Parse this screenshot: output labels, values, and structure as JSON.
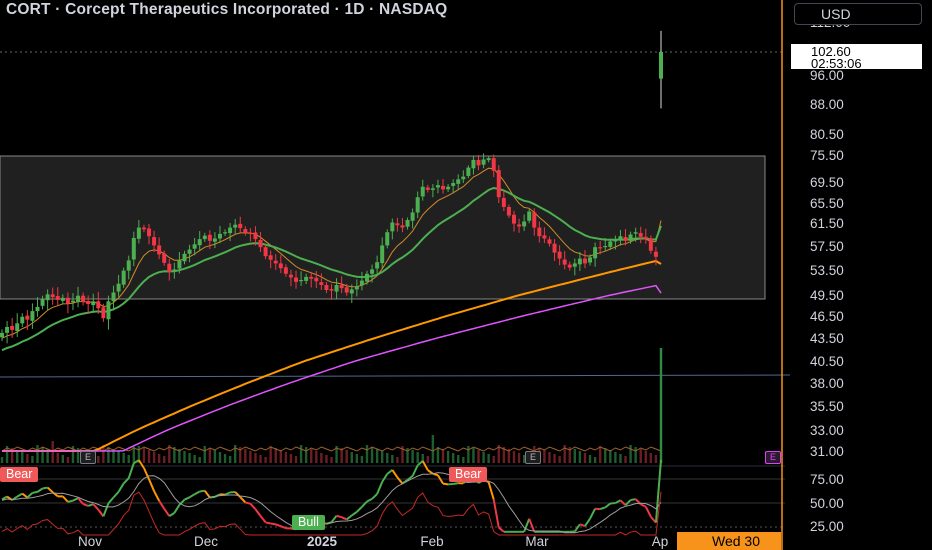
{
  "header": {
    "title": "CORT · Corcept Therapeutics Incorporated · 1D · NASDAQ",
    "currency": "USD"
  },
  "last_price": {
    "price": "102.60",
    "countdown": "02:53:06"
  },
  "crosshair_date": "Wed 30",
  "colors": {
    "up": "#4caf50",
    "down": "#f23645",
    "ema_green": "#4caf50",
    "ema_orange": "#ff9800",
    "ema_pink": "#e056fd",
    "ema_thin": "#d38b29",
    "range_box": "#3a3a3a",
    "crosshair": "#f7931a"
  },
  "chart_data": [
    {
      "type": "candlestick",
      "symbol": "CORT",
      "interval": "1D",
      "exchange": "NASDAQ",
      "y_axis_ticks": [
        "112.00",
        "102.60",
        "96.00",
        "88.00",
        "80.50",
        "75.50",
        "69.50",
        "65.50",
        "61.50",
        "57.50",
        "53.50",
        "49.50",
        "46.50",
        "43.50",
        "40.50",
        "38.00",
        "35.50",
        "33.00",
        "31.00"
      ],
      "x_axis_ticks": [
        "Nov",
        "Dec",
        "2025",
        "Feb",
        "Mar",
        "Ap"
      ],
      "approx_closes": [
        44.2,
        45,
        44.6,
        45.5,
        46.4,
        46,
        47.2,
        47.8,
        48.9,
        49.6,
        49.2,
        48.8,
        49.1,
        48.3,
        48.7,
        49.4,
        48.5,
        48.2,
        48.6,
        47.6,
        46.2,
        48.6,
        49.9,
        51.3,
        53.4,
        55.1,
        58.9,
        60.7,
        60.4,
        59.2,
        57.6,
        56.1,
        54.7,
        53.2,
        53.6,
        55.1,
        56.2,
        56.9,
        57.8,
        58.7,
        59.3,
        58.4,
        58.8,
        59.6,
        59.9,
        60.7,
        61.2,
        60.6,
        59.8,
        59.7,
        58.7,
        57.3,
        55.8,
        55.2,
        54.6,
        53.8,
        52.9,
        52.3,
        51.6,
        51.9,
        52.4,
        52.1,
        51.7,
        51.1,
        50.3,
        50.2,
        51.1,
        50.6,
        49.9,
        50.4,
        50.9,
        51.8,
        52.9,
        53.6,
        54.8,
        57.6,
        59.9,
        61.6,
        61.1,
        60.7,
        62.1,
        63.6,
        66.6,
        68.6,
        68.0,
        68.3,
        68.9,
        68.1,
        68.6,
        69.3,
        70.1,
        70.7,
        72.7,
        74.4,
        73.2,
        74.5,
        74.8,
        72.0,
        66.6,
        64.7,
        63.0,
        61.4,
        60.9,
        61.8,
        63.8,
        60.7,
        59.2,
        58.8,
        57.9,
        56.4,
        55.4,
        54.4,
        53.9,
        54.6,
        55.4,
        54.6,
        55.6,
        57.3,
        57.2,
        57.5,
        58.3,
        58.5,
        59.2,
        58.4,
        59.5,
        59.9,
        59.1,
        58.7,
        56.7,
        55.7,
        102.6
      ],
      "annotations": [
        "Bear",
        "Bear",
        "Bull",
        "E",
        "E",
        "E"
      ],
      "oscillator_levels": [
        "75.00",
        "50.00",
        "25.00"
      ]
    }
  ]
}
